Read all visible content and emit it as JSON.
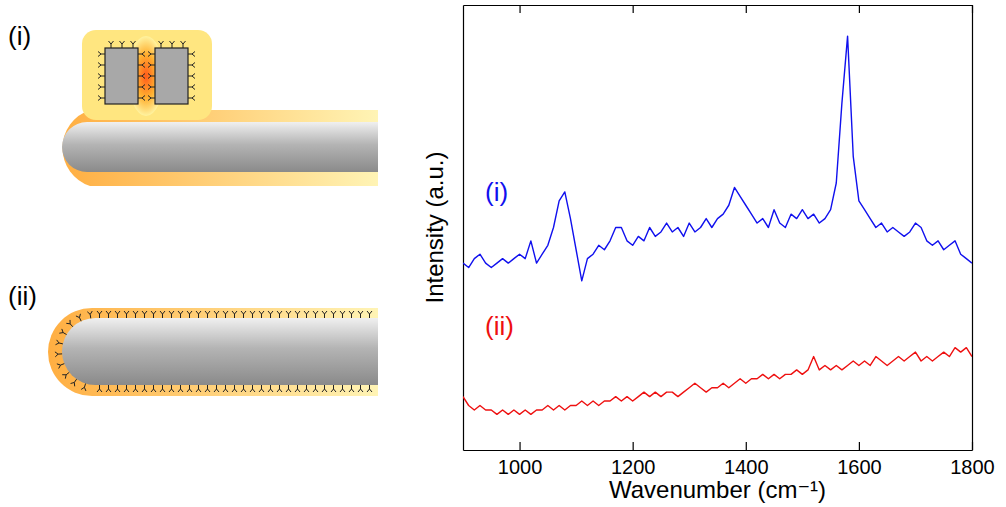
{
  "chart_data": {
    "type": "line",
    "x_label": "Wavenumber (cm⁻¹)",
    "y_label": "Intensity (a.u.)",
    "xlim": [
      900,
      1800
    ],
    "xticks": [
      1000,
      1200,
      1400,
      1600,
      1800
    ],
    "ylim": [
      0,
      100
    ],
    "grid": false,
    "tick_labels": "x",
    "x": [
      900,
      910,
      920,
      930,
      940,
      950,
      960,
      970,
      980,
      990,
      1000,
      1010,
      1020,
      1030,
      1040,
      1050,
      1060,
      1070,
      1080,
      1090,
      1100,
      1110,
      1120,
      1130,
      1140,
      1150,
      1160,
      1170,
      1180,
      1190,
      1200,
      1210,
      1220,
      1230,
      1240,
      1250,
      1260,
      1270,
      1280,
      1290,
      1300,
      1310,
      1320,
      1330,
      1340,
      1350,
      1360,
      1370,
      1380,
      1390,
      1400,
      1410,
      1420,
      1430,
      1440,
      1450,
      1460,
      1470,
      1480,
      1490,
      1500,
      1510,
      1520,
      1530,
      1540,
      1550,
      1560,
      1570,
      1580,
      1590,
      1600,
      1610,
      1620,
      1630,
      1640,
      1650,
      1660,
      1670,
      1680,
      1690,
      1700,
      1710,
      1720,
      1730,
      1740,
      1750,
      1760,
      1770,
      1780,
      1790,
      1800
    ],
    "series": [
      {
        "name": "(i)",
        "color": "#1010ee",
        "values": [
          42,
          41,
          43,
          44,
          42,
          41,
          42,
          43,
          42,
          43,
          44,
          43,
          47,
          42,
          44,
          46,
          50,
          56,
          58,
          52,
          45,
          38,
          43,
          44,
          46,
          45,
          47,
          50,
          50,
          47,
          46,
          48,
          47,
          50,
          48,
          49,
          51,
          49,
          50,
          48,
          51,
          49,
          50,
          52,
          50,
          52,
          53,
          55,
          59,
          57,
          55,
          53,
          51,
          52,
          50,
          54,
          51,
          50,
          53,
          52,
          54,
          52,
          53,
          51,
          52,
          54,
          60,
          78,
          93,
          66,
          56,
          54,
          52,
          50,
          51,
          49,
          50,
          49,
          48,
          49,
          51,
          50,
          47,
          46,
          47,
          45,
          46,
          47,
          44,
          43,
          42
        ]
      },
      {
        "name": "(ii)",
        "color": "#ee1010",
        "values": [
          12,
          10,
          9,
          10,
          9,
          9,
          8,
          9,
          8,
          9,
          8,
          9,
          8,
          9,
          9,
          10,
          9,
          10,
          9,
          10,
          10,
          11,
          10,
          11,
          10,
          11,
          11,
          12,
          11,
          12,
          11,
          12,
          13,
          12,
          13,
          12,
          13,
          13,
          12,
          13,
          14,
          15,
          14,
          13,
          14,
          14,
          15,
          14,
          15,
          16,
          15,
          16,
          16,
          17,
          16,
          17,
          16,
          17,
          17,
          18,
          17,
          18,
          21,
          18,
          19,
          18,
          19,
          18,
          19,
          20,
          19,
          20,
          19,
          21,
          20,
          19,
          20,
          21,
          20,
          21,
          22,
          20,
          21,
          20,
          21,
          22,
          21,
          23,
          22,
          23,
          21
        ]
      }
    ]
  },
  "schematic": {
    "labels": [
      "(i)",
      "(ii)"
    ]
  }
}
